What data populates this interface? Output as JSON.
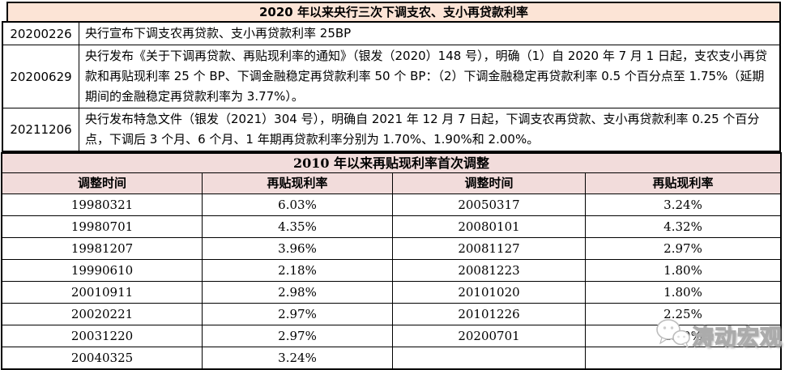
{
  "colors": {
    "table1_title_bg": "#fce4d6",
    "table2_title_bg": "#f2dcdb",
    "border": "#000000",
    "text": "#000000",
    "watermark_text_color": "#ffffff"
  },
  "table1": {
    "title": "2020 年以来央行三次下调支农、支小再贷款利率",
    "rows": [
      {
        "date": "20200226",
        "content": "央行宣布下调支农再贷款、支小再贷款利率 25BP"
      },
      {
        "date": "20200629",
        "content": "央行发布《关于下调再贷款、再贴现利率的通知》（银发（2020）148 号），明确（1）自 2020 年 7 月 1 日起，支农支小再贷款和再贴现利率 25 个 BP、下调金融稳定再贷款利率 50 个 BP：（2）下调金融稳定再贷款利率 0.5 个百分点至 1.75%（延期期间的金融稳定再贷款利率为 3.77%）。"
      },
      {
        "date": "20211206",
        "content": "央行发布特急文件（银发（2021）304 号），明确自 2021 年 12 月 7 日起，下调支农再贷款、支小再贷款利率 0.25 个百分点，下调后 3 个月、6 个月、1 年期再贷款利率分别为 1.70%、1.90%和 2.00%。"
      }
    ]
  },
  "table2": {
    "title": "2010 年以来再贴现利率首次调整",
    "headers": [
      "调整时间",
      "再贴现利率",
      "调整时间",
      "再贴现利率"
    ],
    "rows": [
      [
        "19980321",
        "6.03%",
        "20050317",
        "3.24%"
      ],
      [
        "19980701",
        "4.35%",
        "20080101",
        "4.32%"
      ],
      [
        "19981207",
        "3.96%",
        "20081127",
        "2.97%"
      ],
      [
        "19990610",
        "2.18%",
        "20081223",
        "1.80%"
      ],
      [
        "20010911",
        "2.98%",
        "20101020",
        "1.80%"
      ],
      [
        "20020221",
        "2.97%",
        "20101226",
        "2.25%"
      ],
      [
        "20031220",
        "2.97%",
        "20200701",
        "2.00%"
      ],
      [
        "20040325",
        "3.24%",
        "",
        ""
      ]
    ]
  },
  "watermark": {
    "text": "涛动宏观",
    "icon": "wechat-chat-bubbles-icon"
  }
}
